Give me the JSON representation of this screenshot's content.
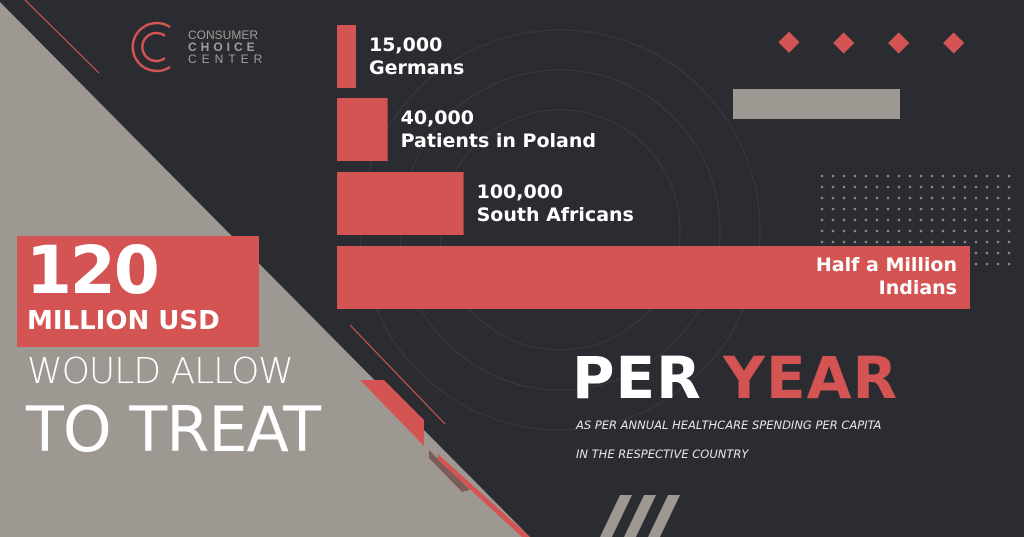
{
  "brand": {
    "line1": "CONSUMER",
    "line2": "CHOICE",
    "line3": "CENTER"
  },
  "colors": {
    "background": "#2b2c31",
    "grey": "#9e9892",
    "accent": "#d35452"
  },
  "headline": {
    "amount": "120",
    "unit": "MILLION USD",
    "line1": "WOULD ALLOW",
    "line2": "TO TREAT"
  },
  "period": {
    "word1": "PER",
    "word2": "YEAR",
    "note1": "AS PER ANNUAL HEALTHCARE SPENDING PER CAPITA",
    "note2": "IN THE RESPECTIVE COUNTRY"
  },
  "chart_data": {
    "type": "bar",
    "orientation": "horizontal",
    "categories": [
      "Germans",
      "Patients in Poland",
      "South Africans",
      "Indians"
    ],
    "values": [
      15000,
      40000,
      100000,
      500000
    ],
    "value_labels": [
      "15,000",
      "40,000",
      "100,000",
      "Half a Million"
    ],
    "color": "#d35452",
    "xlim": [
      0,
      500000
    ],
    "grid": false
  }
}
